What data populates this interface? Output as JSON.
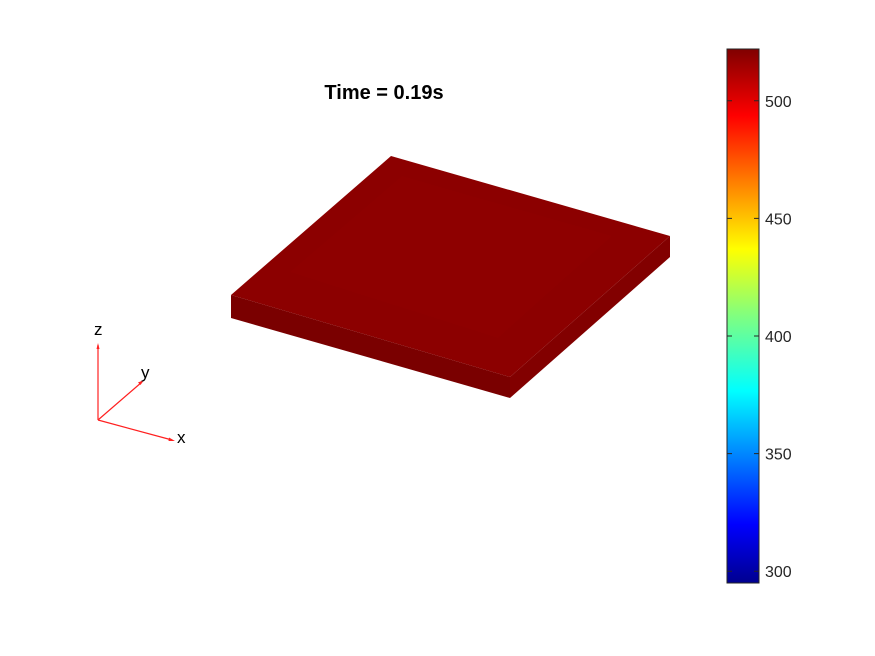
{
  "figure": {
    "title": "Time = 0.19s",
    "background": "#ffffff"
  },
  "chart_data": {
    "type": "heatmap",
    "title": "Time = 0.19s",
    "render": "3d-surface-plate",
    "colormap": "jet",
    "colorbar": {
      "range": [
        295,
        522
      ],
      "ticks": [
        300,
        350,
        400,
        450,
        500
      ],
      "tick_labels": [
        "300",
        "350",
        "400",
        "450",
        "500"
      ]
    },
    "plate": {
      "value": 518,
      "colors": {
        "top": "#8c0000",
        "top_inner": "#8f0000",
        "front": "#7a0000",
        "right": "#820000",
        "left_end": "#8a0000"
      }
    },
    "triad": {
      "labels": {
        "x": "x",
        "y": "y",
        "z": "z"
      },
      "color": "#ff2020"
    }
  }
}
